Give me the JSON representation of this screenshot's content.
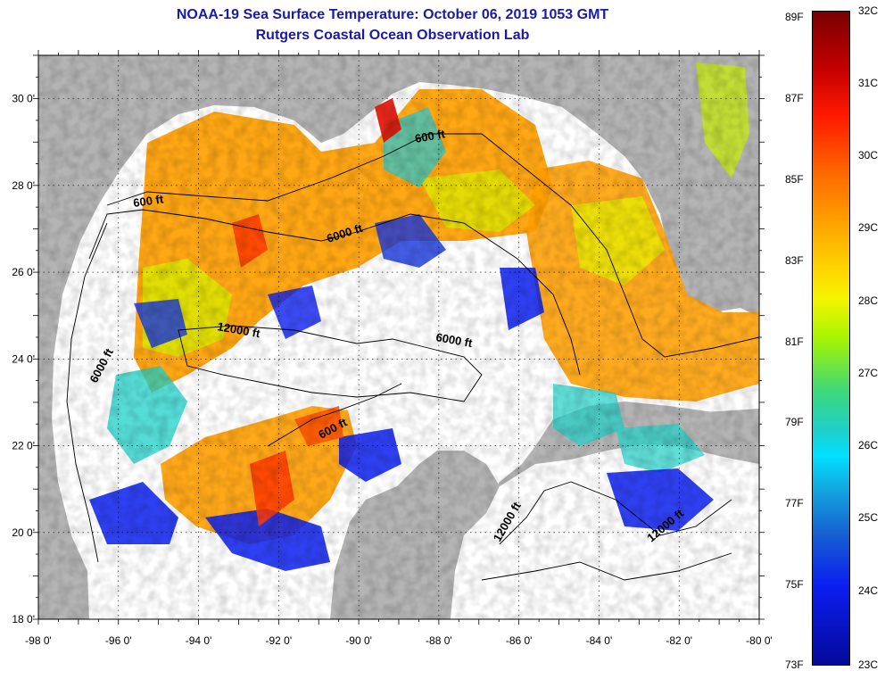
{
  "title": {
    "line1": "NOAA-19 Sea Surface Temperature:  October 06, 2019 1053 GMT",
    "line2": "Rutgers Coastal Ocean Observation Lab"
  },
  "axes": {
    "lat_ticks": [
      "18 0'",
      "20 0'",
      "22 0'",
      "24 0'",
      "26 0'",
      "28 0'",
      "30 0'"
    ],
    "lon_ticks": [
      "-98 0'",
      "-96 0'",
      "-94 0'",
      "-92 0'",
      "-90 0'",
      "-88 0'",
      "-86 0'",
      "-84 0'",
      "-82 0'",
      "-80 0'"
    ],
    "lat_range": [
      18,
      31
    ],
    "lon_range": [
      -98,
      -80
    ]
  },
  "contours": {
    "labels": [
      "600 ft",
      "600 ft",
      "6000 ft",
      "12000 ft",
      "6000 ft",
      "6000 ft",
      "600 ft",
      "12000 ft",
      "12000 ft"
    ]
  },
  "colorbar": {
    "fahrenheit": [
      "89F",
      "87F",
      "85F",
      "83F",
      "81F",
      "79F",
      "77F",
      "75F",
      "73F"
    ],
    "celsius": [
      "32C",
      "31C",
      "30C",
      "29C",
      "28C",
      "27C",
      "26C",
      "25C",
      "24C",
      "23C"
    ],
    "range_c": [
      23,
      32
    ]
  },
  "colors": {
    "title": "#1a1aa6",
    "land": "#b4b4b4",
    "nodata": "#ffffff",
    "warm": "#ff9f00",
    "hot": "#e01000",
    "mid": "#f5f500",
    "cool": "#1ed0c8",
    "cold": "#0b1ef0"
  }
}
